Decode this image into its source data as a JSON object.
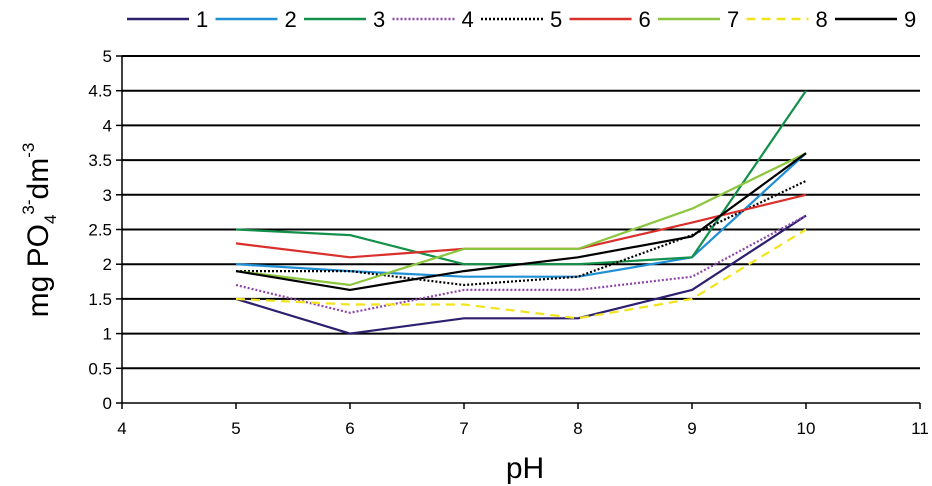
{
  "chart_data": {
    "type": "line",
    "xlabel": "pH",
    "ylabel": {
      "parts": [
        "mg PO",
        "4",
        "3-",
        "dm",
        "-3"
      ]
    },
    "xlim": [
      4,
      11
    ],
    "ylim": [
      0,
      5
    ],
    "x_ticks": [
      "4",
      "5",
      "6",
      "7",
      "8",
      "9",
      "10",
      "11"
    ],
    "y_ticks": [
      "0",
      "0.5",
      "1",
      "1.5",
      "2",
      "2.5",
      "3",
      "3.5",
      "4",
      "4.5",
      "5"
    ],
    "grid": "horizontal",
    "legend_position": "top",
    "x": [
      5,
      6,
      7,
      8,
      9,
      10
    ],
    "series": [
      {
        "name": "1",
        "values": [
          1.5,
          1.0,
          1.22,
          1.22,
          1.63,
          2.7
        ],
        "color": "#2e1f6e",
        "dash": "solid"
      },
      {
        "name": "2",
        "values": [
          2.0,
          1.9,
          1.82,
          1.82,
          2.1,
          3.6
        ],
        "color": "#1f8fd6",
        "dash": "solid"
      },
      {
        "name": "3",
        "values": [
          2.5,
          2.42,
          2.0,
          2.0,
          2.1,
          4.5
        ],
        "color": "#13904a",
        "dash": "solid"
      },
      {
        "name": "4",
        "values": [
          1.7,
          1.3,
          1.63,
          1.63,
          1.82,
          2.7
        ],
        "color": "#8e44ad",
        "dash": "dotted"
      },
      {
        "name": "5",
        "values": [
          1.9,
          1.9,
          1.7,
          1.82,
          2.42,
          3.2
        ],
        "color": "#000000",
        "dash": "dotted"
      },
      {
        "name": "6",
        "values": [
          2.3,
          2.1,
          2.22,
          2.22,
          2.6,
          3.0
        ],
        "color": "#d9302c",
        "dash": "solid"
      },
      {
        "name": "7",
        "values": [
          1.9,
          1.7,
          2.22,
          2.22,
          2.8,
          3.6
        ],
        "color": "#8cc63f",
        "dash": "solid"
      },
      {
        "name": "8",
        "values": [
          1.5,
          1.42,
          1.42,
          1.22,
          1.5,
          2.5
        ],
        "color": "#f2e41a",
        "dash": "dashed"
      },
      {
        "name": "9",
        "values": [
          1.9,
          1.63,
          1.9,
          2.1,
          2.4,
          3.6
        ],
        "color": "#000000",
        "dash": "solid"
      }
    ]
  }
}
